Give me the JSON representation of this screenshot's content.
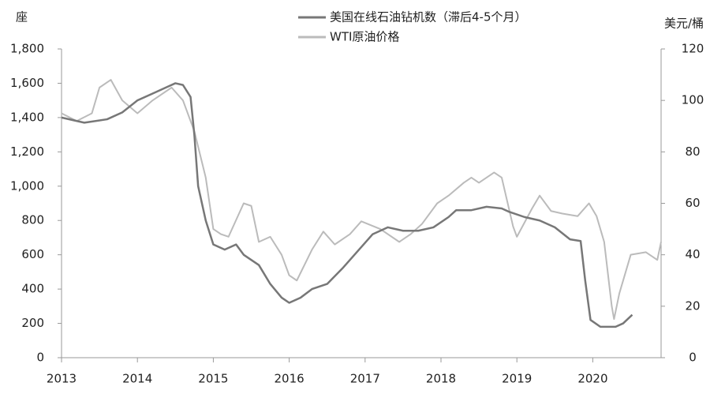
{
  "chart_data": {
    "type": "line",
    "y_label": "座",
    "y2_label": "美元/桶",
    "xlim": [
      2013,
      2020.9
    ],
    "xticks": [
      2013,
      2014,
      2015,
      2016,
      2017,
      2018,
      2019,
      2020
    ],
    "ylim": [
      0,
      1800
    ],
    "yticks": [
      0,
      200,
      400,
      600,
      800,
      {
        "value": 1000,
        "label": "1,000"
      },
      {
        "value": 1200,
        "label": "1,200"
      },
      {
        "value": 1400,
        "label": "1,400"
      },
      {
        "value": 1600,
        "label": "1,600"
      },
      {
        "value": 1800,
        "label": "1,800"
      }
    ],
    "y2lim": [
      0,
      120
    ],
    "y2ticks": [
      0,
      20,
      40,
      60,
      80,
      100,
      120
    ],
    "legend": "top",
    "series": [
      {
        "name": "美国在线石油钻机数（滞后4-5个月）",
        "color": "#777777",
        "x": [
          2013.0,
          2013.3,
          2013.6,
          2013.8,
          2014.0,
          2014.2,
          2014.4,
          2014.5,
          2014.6,
          2014.7,
          2014.75,
          2014.8,
          2014.9,
          2015.0,
          2015.15,
          2015.3,
          2015.4,
          2015.6,
          2015.75,
          2015.9,
          2016.0,
          2016.15,
          2016.3,
          2016.5,
          2016.7,
          2016.9,
          2017.1,
          2017.3,
          2017.5,
          2017.7,
          2017.9,
          2018.1,
          2018.2,
          2018.4,
          2018.6,
          2018.8,
          2018.9,
          2019.1,
          2019.3,
          2019.5,
          2019.7,
          2019.84,
          2019.9,
          2019.97,
          2020.1,
          2020.3,
          2020.4,
          2020.52
        ],
        "values": [
          1400,
          1370,
          1390,
          1430,
          1500,
          1540,
          1580,
          1600,
          1590,
          1520,
          1300,
          1000,
          800,
          660,
          630,
          660,
          600,
          540,
          430,
          350,
          320,
          350,
          400,
          430,
          520,
          620,
          720,
          760,
          740,
          740,
          760,
          820,
          860,
          860,
          880,
          870,
          850,
          820,
          800,
          760,
          690,
          680,
          450,
          220,
          180,
          180,
          200,
          250
        ]
      },
      {
        "name": "WTI原油价格",
        "color": "#bbbbbb",
        "axis": "y2",
        "x": [
          2013.0,
          2013.2,
          2013.4,
          2013.5,
          2013.65,
          2013.8,
          2014.0,
          2014.2,
          2014.45,
          2014.6,
          2014.75,
          2014.9,
          2015.0,
          2015.1,
          2015.2,
          2015.4,
          2015.5,
          2015.6,
          2015.75,
          2015.9,
          2016.0,
          2016.1,
          2016.3,
          2016.45,
          2016.6,
          2016.8,
          2016.95,
          2017.2,
          2017.45,
          2017.6,
          2017.75,
          2017.95,
          2018.1,
          2018.3,
          2018.4,
          2018.5,
          2018.7,
          2018.8,
          2018.95,
          2019.0,
          2019.2,
          2019.3,
          2019.45,
          2019.6,
          2019.8,
          2019.95,
          2020.05,
          2020.15,
          2020.25,
          2020.28,
          2020.35,
          2020.5,
          2020.7,
          2020.85,
          2020.9
        ],
        "values": [
          95,
          92,
          95,
          105,
          108,
          100,
          95,
          100,
          105,
          100,
          88,
          70,
          50,
          48,
          47,
          60,
          59,
          45,
          47,
          40,
          32,
          30,
          42,
          49,
          44,
          48,
          53,
          50,
          45,
          48,
          52,
          60,
          63,
          68,
          70,
          68,
          72,
          70,
          51,
          47,
          58,
          63,
          57,
          56,
          55,
          60,
          55,
          45,
          20,
          15,
          25,
          40,
          41,
          38,
          45
        ]
      }
    ]
  }
}
